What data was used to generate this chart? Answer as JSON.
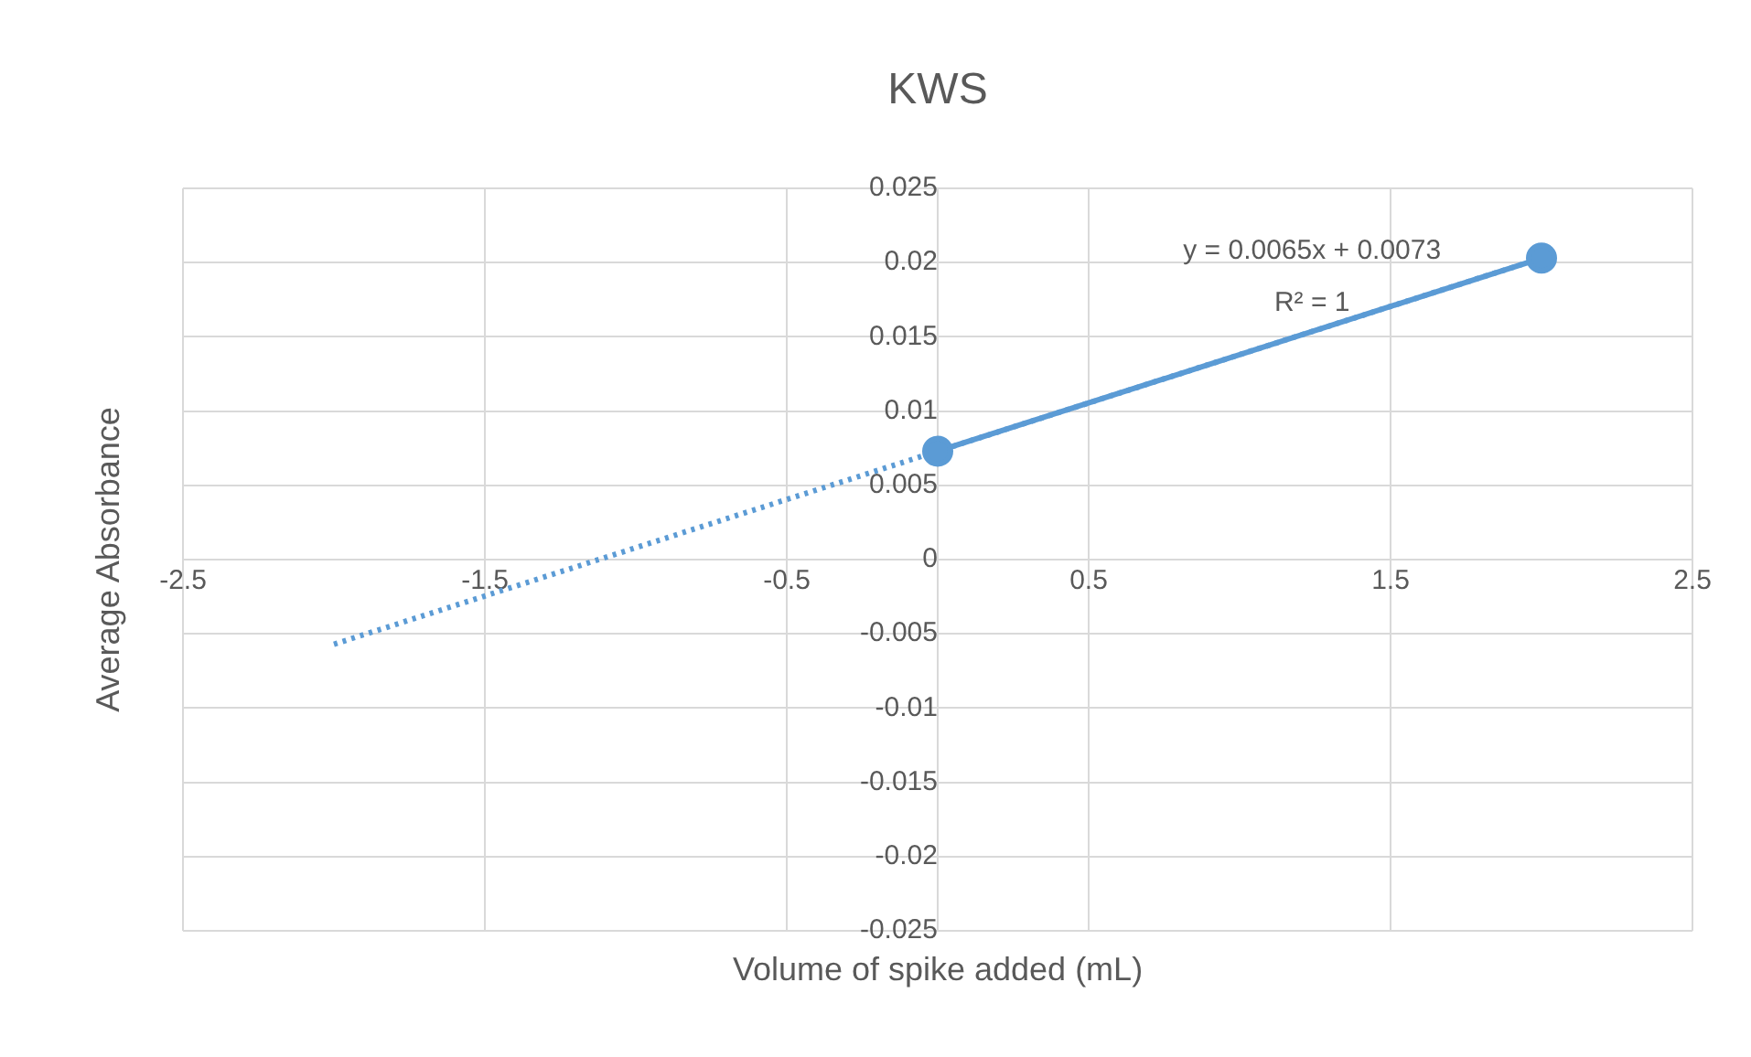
{
  "chart_data": {
    "type": "scatter",
    "title": "KWS",
    "xlabel": "Volume of spike added (mL)",
    "ylabel": "Average Absorbance",
    "xlim": [
      -2.5,
      2.5
    ],
    "xticks": [
      -2.5,
      -1.5,
      -0.5,
      0.5,
      1.5,
      2.5
    ],
    "ylim": [
      -0.025,
      0.025
    ],
    "yticks": [
      -0.025,
      -0.02,
      -0.015,
      -0.01,
      -0.005,
      0,
      0.005,
      0.01,
      0.015,
      0.02,
      0.025
    ],
    "grid": true,
    "series": [
      {
        "type": "line",
        "color": "#5b9bd5",
        "x": [
          0,
          2
        ],
        "values": [
          0.0073,
          0.0203
        ],
        "marker": "circle",
        "line_style": "solid"
      },
      {
        "type": "line",
        "color": "#5b9bd5",
        "x": [
          -2,
          2
        ],
        "values": [
          -0.0057,
          0.0203
        ],
        "marker": "none",
        "line_style": "dotted"
      }
    ],
    "annotations": [
      "y = 0.0065x + 0.0073",
      "R² = 1"
    ]
  }
}
